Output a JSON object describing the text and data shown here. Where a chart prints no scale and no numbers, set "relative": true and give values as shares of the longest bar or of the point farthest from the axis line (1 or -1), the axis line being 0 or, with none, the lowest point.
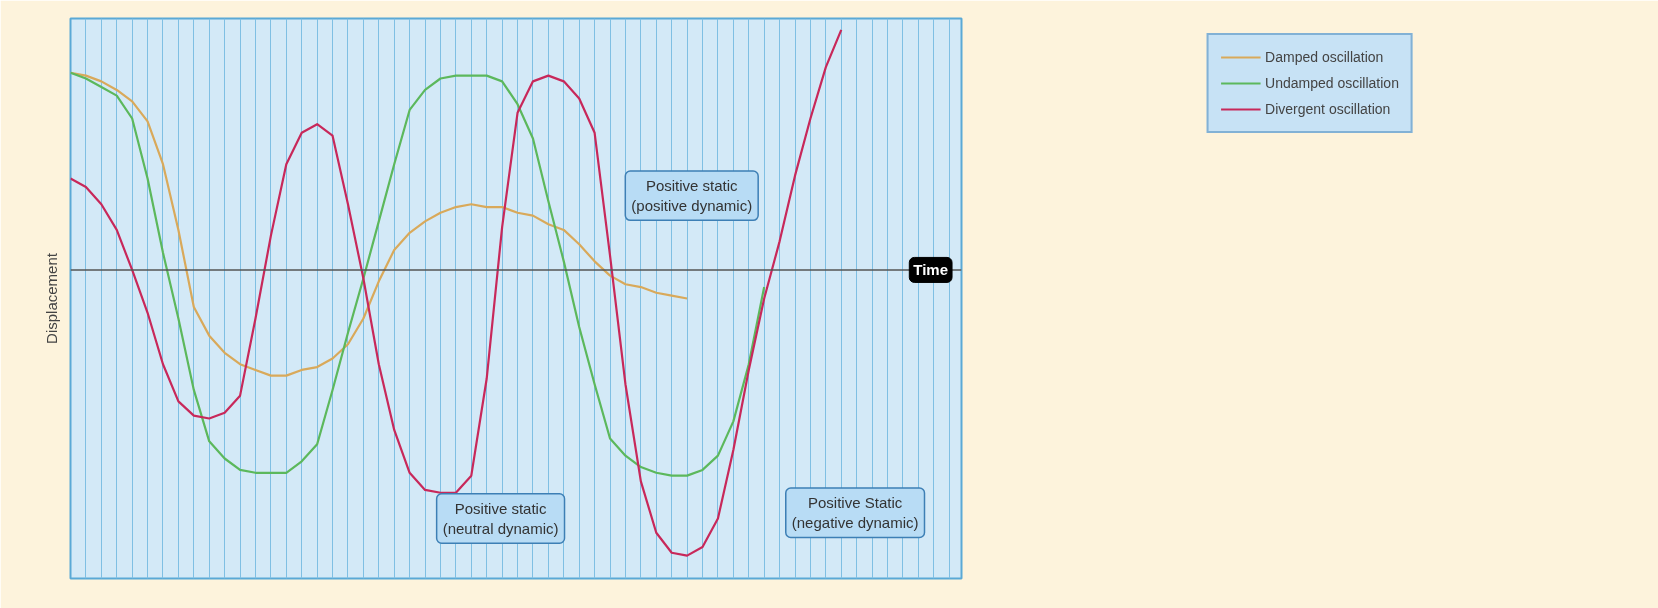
{
  "chart_data": {
    "type": "line",
    "relative": true,
    "xlabel": "Time",
    "ylabel": "Displacement",
    "categories": [
      null,
      null,
      null,
      null,
      null,
      null,
      null,
      null,
      null,
      null,
      null,
      null,
      null,
      null,
      null,
      null,
      null,
      null,
      null,
      null,
      null,
      null,
      null,
      null,
      null,
      null,
      null,
      null,
      null,
      null,
      null,
      null,
      null,
      null,
      null,
      null,
      null,
      null,
      null,
      null,
      null,
      null,
      null,
      null,
      null,
      null,
      null,
      null,
      null,
      null,
      null,
      null,
      null,
      null,
      null,
      null,
      null,
      null
    ],
    "series": [
      {
        "name": "Damped oscillation",
        "color": "#d9a95a",
        "values": [
          0.69,
          0.68,
          0.66,
          0.63,
          0.59,
          0.52,
          0.37,
          0.14,
          -0.13,
          -0.23,
          -0.29,
          -0.33,
          -0.35,
          -0.37,
          -0.37,
          -0.35,
          -0.34,
          -0.31,
          -0.26,
          -0.17,
          -0.04,
          0.07,
          0.13,
          0.17,
          0.2,
          0.22,
          0.23,
          0.22,
          0.22,
          0.2,
          0.19,
          0.16,
          0.14,
          0.09,
          0.03,
          -0.02,
          -0.05,
          -0.06,
          -0.08,
          -0.09,
          -0.1,
          null,
          null,
          null,
          null,
          null,
          null,
          null,
          null,
          null,
          null,
          null,
          null,
          null,
          null,
          null,
          null,
          null
        ]
      },
      {
        "name": "Undamped oscillation",
        "color": "#5cb85c",
        "values": [
          0.69,
          0.67,
          0.64,
          0.61,
          0.53,
          0.32,
          0.06,
          -0.17,
          -0.42,
          -0.6,
          -0.66,
          -0.7,
          -0.71,
          -0.71,
          -0.71,
          -0.67,
          -0.61,
          -0.42,
          -0.22,
          -0.03,
          0.17,
          0.37,
          0.56,
          0.63,
          0.67,
          0.68,
          0.68,
          0.68,
          0.66,
          0.58,
          0.46,
          0.24,
          0.03,
          -0.2,
          -0.4,
          -0.59,
          -0.65,
          -0.69,
          -0.71,
          -0.72,
          -0.72,
          -0.7,
          -0.65,
          -0.53,
          -0.33,
          -0.06,
          null,
          null,
          null,
          null,
          null,
          null,
          null,
          null,
          null,
          null,
          null,
          null
        ]
      },
      {
        "name": "Divergent oscillation",
        "color": "#c8285a",
        "values": [
          0.32,
          0.29,
          0.23,
          0.14,
          0.0,
          -0.15,
          -0.33,
          -0.46,
          -0.51,
          -0.52,
          -0.5,
          -0.44,
          -0.17,
          0.12,
          0.37,
          0.48,
          0.51,
          0.47,
          0.23,
          -0.03,
          -0.33,
          -0.56,
          -0.71,
          -0.77,
          -0.78,
          -0.78,
          -0.72,
          -0.38,
          0.15,
          0.55,
          0.66,
          0.68,
          0.66,
          0.6,
          0.48,
          0.05,
          -0.4,
          -0.74,
          -0.92,
          -0.99,
          -1,
          -0.97,
          -0.87,
          -0.63,
          -0.35,
          -0.1,
          0.1,
          0.33,
          0.53,
          0.71,
          0.84,
          null,
          null,
          null,
          null,
          null,
          null,
          null
        ]
      }
    ],
    "annotations": [
      "Positive static\n(positive dynamic)",
      "Positive static\n(neutral dynamic)",
      "Positive Static\n(negative dynamic)"
    ],
    "grid": "x",
    "legend": "top right",
    "line_style": "solid",
    "marker": "none"
  }
}
